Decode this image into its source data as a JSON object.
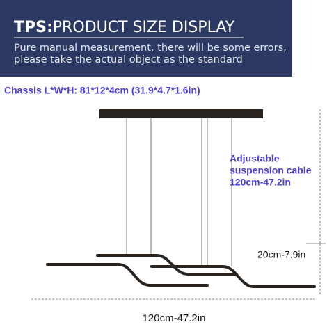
{
  "header": {
    "title_bold": "TPS:",
    "title": "PRODUCT SIZE DISPLAY",
    "subtitle": [
      "Pure manual measurement, there will be some errors,",
      "please take the actual object as the standard"
    ]
  },
  "chassis": "Chassis L*W*H: 81*12*4cm (31.9*4.7*1.6in)",
  "cable": [
    "Adjustable",
    "suspension cable",
    "120cm-47.2in"
  ],
  "drop": "20cm-7.9in",
  "width": "120cm-47.2in"
}
